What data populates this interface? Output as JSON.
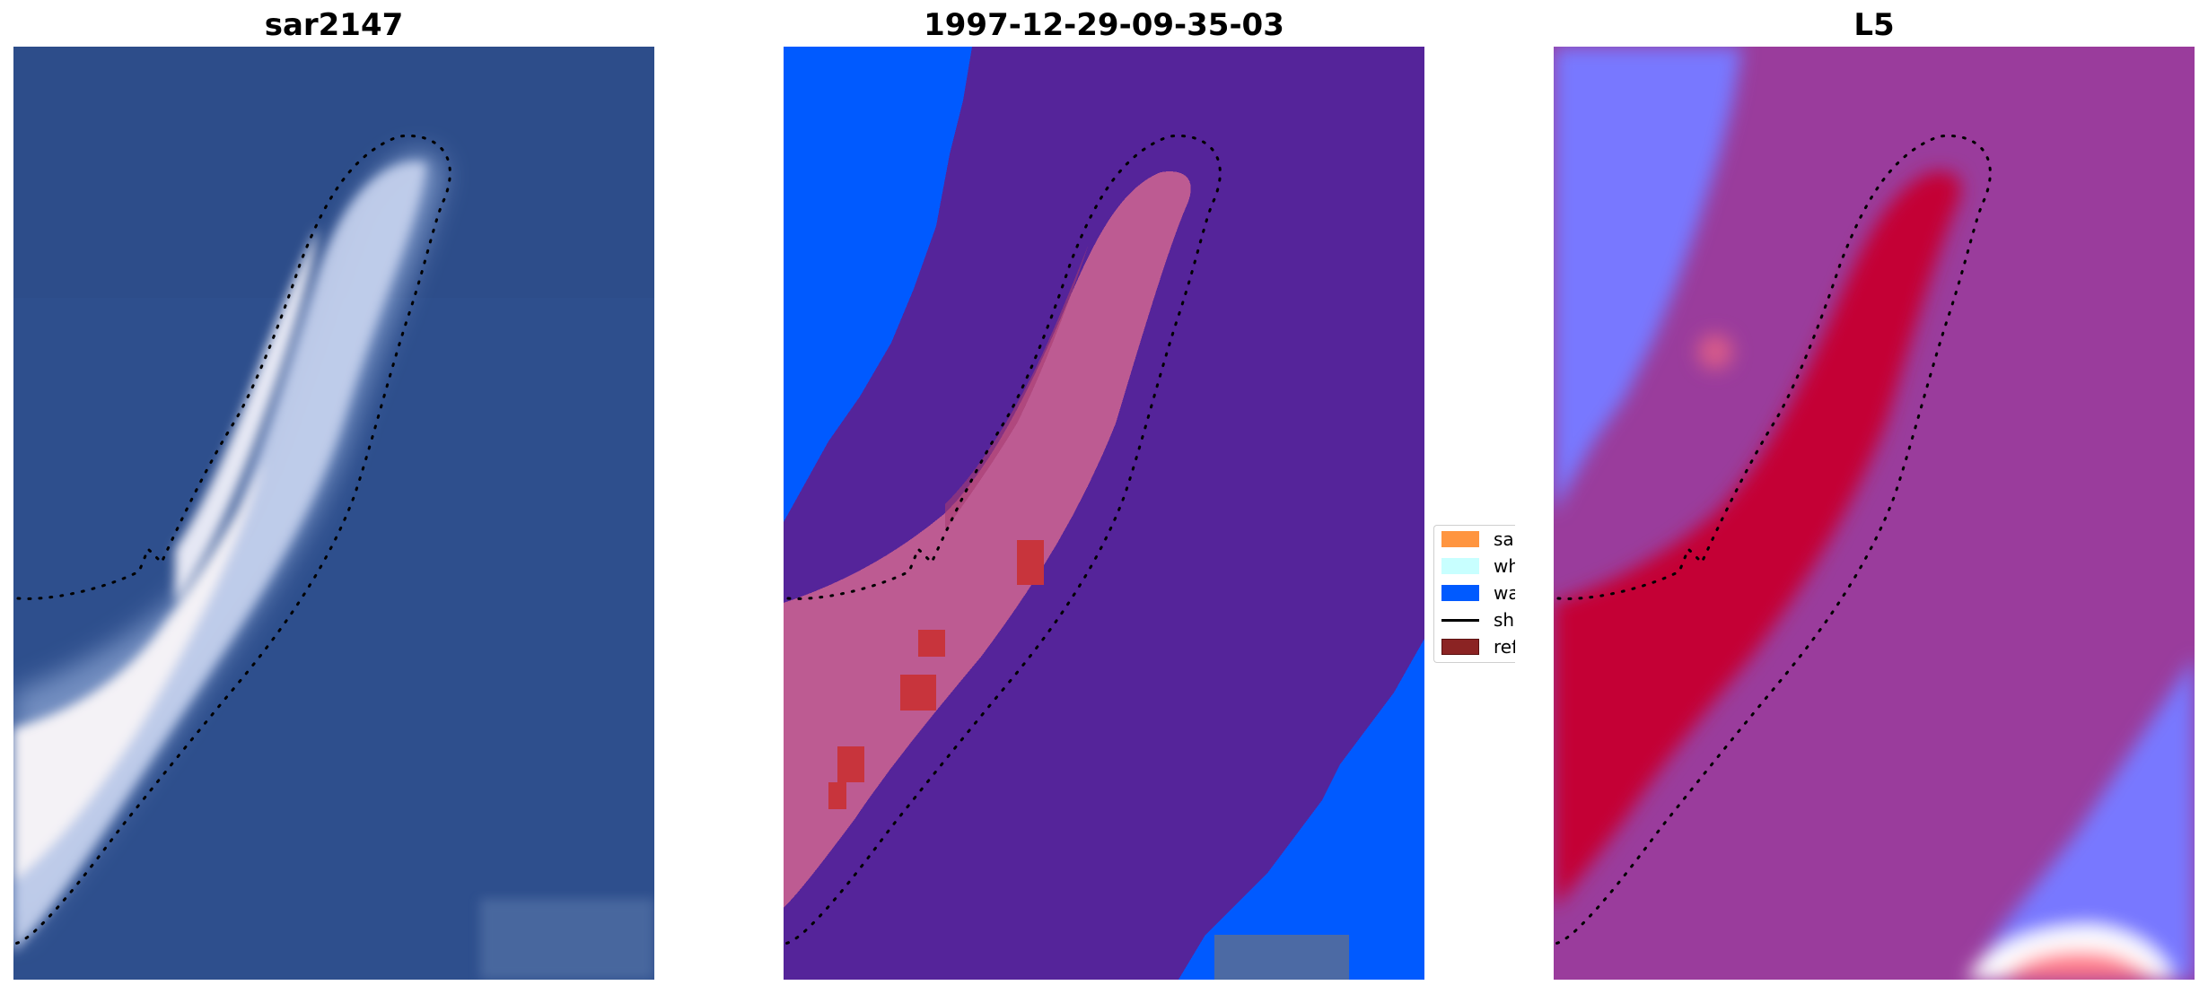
{
  "panels": [
    {
      "title": "sar2147"
    },
    {
      "title": "1997-12-29-09-35-03"
    },
    {
      "title": "L5"
    }
  ],
  "legend": {
    "items": [
      {
        "label": "sand",
        "color": "#ff9540"
      },
      {
        "label": "whitewater",
        "color": "#c8ffff"
      },
      {
        "label": "water",
        "color": "#005aff"
      },
      {
        "label": "shoreline",
        "color": "#000000"
      },
      {
        "label": "reference",
        "color": "#8b2323"
      }
    ]
  },
  "colors": {
    "rgb_background": "#2f4f8e",
    "class_background": "#55249a",
    "class_water": "#005aff",
    "sand_overlay": "#c05a90",
    "sand_highlight": "#c8343c",
    "prob_background": "#9a3c9c",
    "prob_sand": "#c40034",
    "prob_water": "#7878ff"
  }
}
